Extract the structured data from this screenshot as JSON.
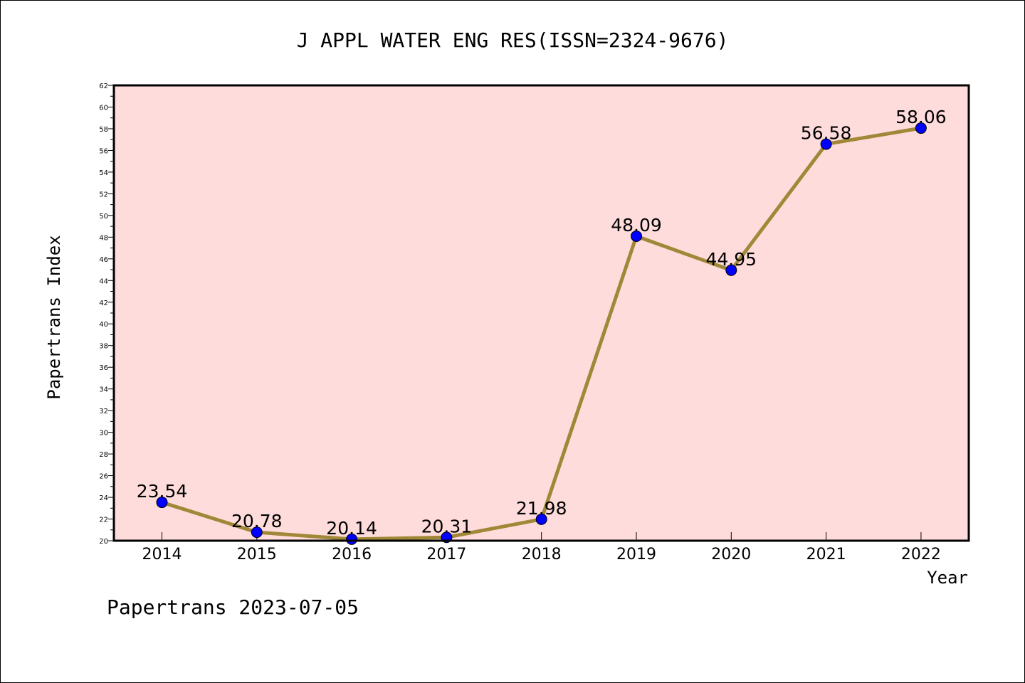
{
  "chart_data": {
    "type": "line",
    "title": "J APPL WATER ENG RES(ISSN=2324-9676)",
    "xlabel": "Year",
    "ylabel": "Papertrans Index",
    "categories": [
      "2014",
      "2015",
      "2016",
      "2017",
      "2018",
      "2019",
      "2020",
      "2021",
      "2022"
    ],
    "series": [
      {
        "values": [
          23.54,
          20.78,
          20.14,
          20.31,
          21.98,
          48.09,
          44.95,
          56.58,
          58.06
        ],
        "labels": [
          "23.54",
          "20.78",
          "20.14",
          "20.31",
          "21.98",
          "48.09",
          "44.95",
          "56.58",
          "58.06"
        ]
      }
    ],
    "ylim": [
      20,
      62
    ],
    "yticks": [
      "20",
      "22",
      "24",
      "26",
      "28",
      "30",
      "32",
      "34",
      "36",
      "38",
      "40",
      "42",
      "44",
      "46",
      "48",
      "50",
      "52",
      "54",
      "56",
      "58",
      "60",
      "62"
    ],
    "grid": false,
    "colors": {
      "plot_background": "#ffdcdc",
      "line": "#a08838",
      "marker": "#0000ff"
    }
  },
  "footer": "Papertrans 2023-07-05"
}
